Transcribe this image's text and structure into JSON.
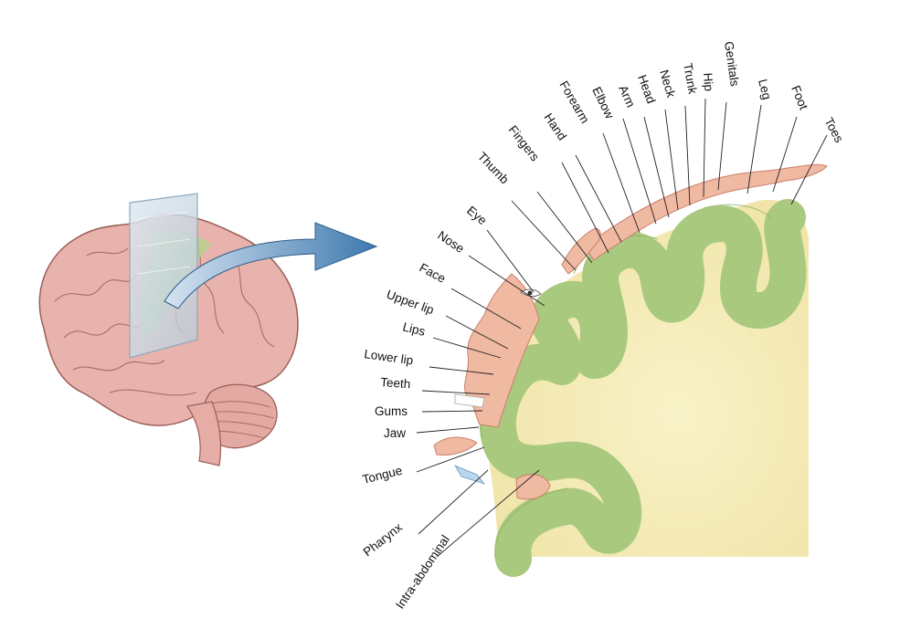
{
  "labels": {
    "toes": "Toes",
    "foot": "Foot",
    "leg": "Leg",
    "genitals": "Genitals",
    "hip": "Hip",
    "trunk": "Trunk",
    "neck": "Neck",
    "head": "Head",
    "arm": "Arm",
    "elbow": "Elbow",
    "forearm": "Forearm",
    "hand": "Hand",
    "fingers": "Fingers",
    "thumb": "Thumb",
    "eye": "Eye",
    "nose": "Nose",
    "face": "Face",
    "upper_lip": "Upper lip",
    "lips": "Lips",
    "lower_lip": "Lower lip",
    "teeth": "Teeth",
    "gums": "Gums",
    "jaw": "Jaw",
    "tongue": "Tongue",
    "pharynx": "Pharynx",
    "intra_abdominal": "Intra-abdominal"
  },
  "colors": {
    "cortex_green": "#a9c97f",
    "white_matter": "#f6eebf",
    "brain_pink": "#e9b3ad",
    "homunculus": "#f0b9a2",
    "arrow_blue": "#4f86b8"
  }
}
